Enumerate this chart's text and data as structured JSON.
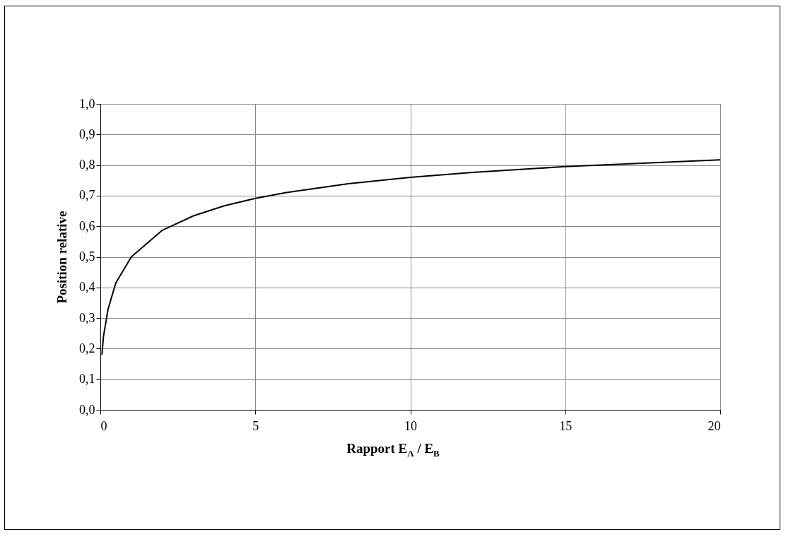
{
  "chart_data": {
    "type": "line",
    "xlabel": "Rapport E$_{A}$ / E$_{B}$",
    "ylabel": "Position relative",
    "x": [
      0.05,
      0.1,
      0.25,
      0.5,
      1,
      2,
      3,
      4,
      5,
      6,
      8,
      10,
      12,
      15,
      20
    ],
    "series": [
      {
        "color": "#000000",
        "values": [
          0.18,
          0.24,
          0.33,
          0.415,
          0.5,
          0.587,
          0.634,
          0.667,
          0.691,
          0.71,
          0.739,
          0.76,
          0.776,
          0.795,
          0.817
        ]
      }
    ],
    "xlim": [
      0,
      20
    ],
    "xticks": [
      0,
      5,
      10,
      15,
      20
    ],
    "ylim": [
      0,
      1
    ],
    "yticks": [
      {
        "value": 0,
        "label": "0,0"
      },
      {
        "value": 0.1,
        "label": "0,1"
      },
      {
        "value": 0.2,
        "label": "0,2"
      },
      {
        "value": 0.3,
        "label": "0,3"
      },
      {
        "value": 0.4,
        "label": "0,4"
      },
      {
        "value": 0.5,
        "label": "0,5"
      },
      {
        "value": 0.6,
        "label": "0,6"
      },
      {
        "value": 0.7,
        "label": "0,7"
      },
      {
        "value": 0.8,
        "label": "0,8"
      },
      {
        "value": 0.9,
        "label": "0,9"
      },
      {
        "value": 1,
        "label": "1,0"
      }
    ],
    "grid": true,
    "marker": "none",
    "line_style": "solid"
  }
}
